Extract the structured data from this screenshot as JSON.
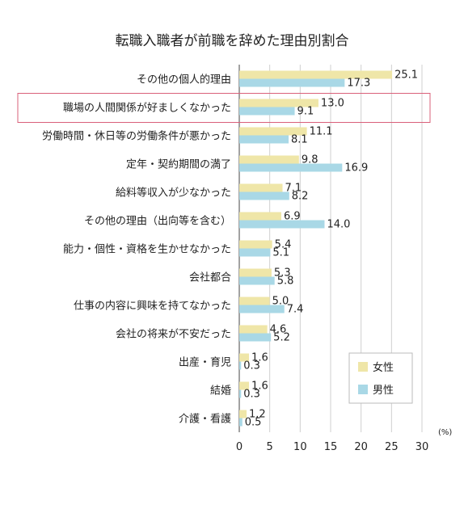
{
  "chart_data": {
    "type": "bar",
    "orientation": "horizontal",
    "title": "転職入職者が前職を辞めた理由別割合",
    "categories": [
      "その他の個人的理由",
      "職場の人間関係が好ましくなかった",
      "労働時間・休日等の労働条件が悪かった",
      "定年・契約期間の満了",
      "給料等収入が少なかった",
      "その他の理由（出向等を含む）",
      "能力・個性・資格を生かせなかった",
      "会社都合",
      "仕事の内容に興味を持てなかった",
      "会社の将来が不安だった",
      "出産・育児",
      "結婚",
      "介護・看護"
    ],
    "series": [
      {
        "name": "女性",
        "color": "#efe6a8",
        "values": [
          25.1,
          13.0,
          11.1,
          9.8,
          7.1,
          6.9,
          5.4,
          5.3,
          5.0,
          4.6,
          1.6,
          1.6,
          1.2
        ],
        "labels": [
          "25.1",
          "13.0",
          "11.1",
          "9.8",
          "7.1",
          "6.9",
          "5.4",
          "5.3",
          "5.0",
          "4.6",
          "1.6",
          "1.6",
          "1.2"
        ]
      },
      {
        "name": "男性",
        "color": "#a9d8e6",
        "values": [
          17.3,
          9.1,
          8.1,
          16.9,
          8.2,
          14.0,
          5.1,
          5.8,
          7.4,
          5.2,
          0.3,
          0.3,
          0.5
        ],
        "labels": [
          "17.3",
          "9.1",
          "8.1",
          "16.9",
          "8.2",
          "14.0",
          "5.1",
          "5.8",
          "7.4",
          "5.2",
          "0.3",
          "0.3",
          "0.5"
        ]
      }
    ],
    "x_ticks": [
      "0",
      "5",
      "10",
      "15",
      "20",
      "25",
      "30"
    ],
    "xlim": [
      0,
      30
    ],
    "unit": "(%)",
    "grid": true,
    "legend": "bottom-right",
    "highlight": {
      "category_index": 1,
      "color": "#d9607a"
    }
  }
}
